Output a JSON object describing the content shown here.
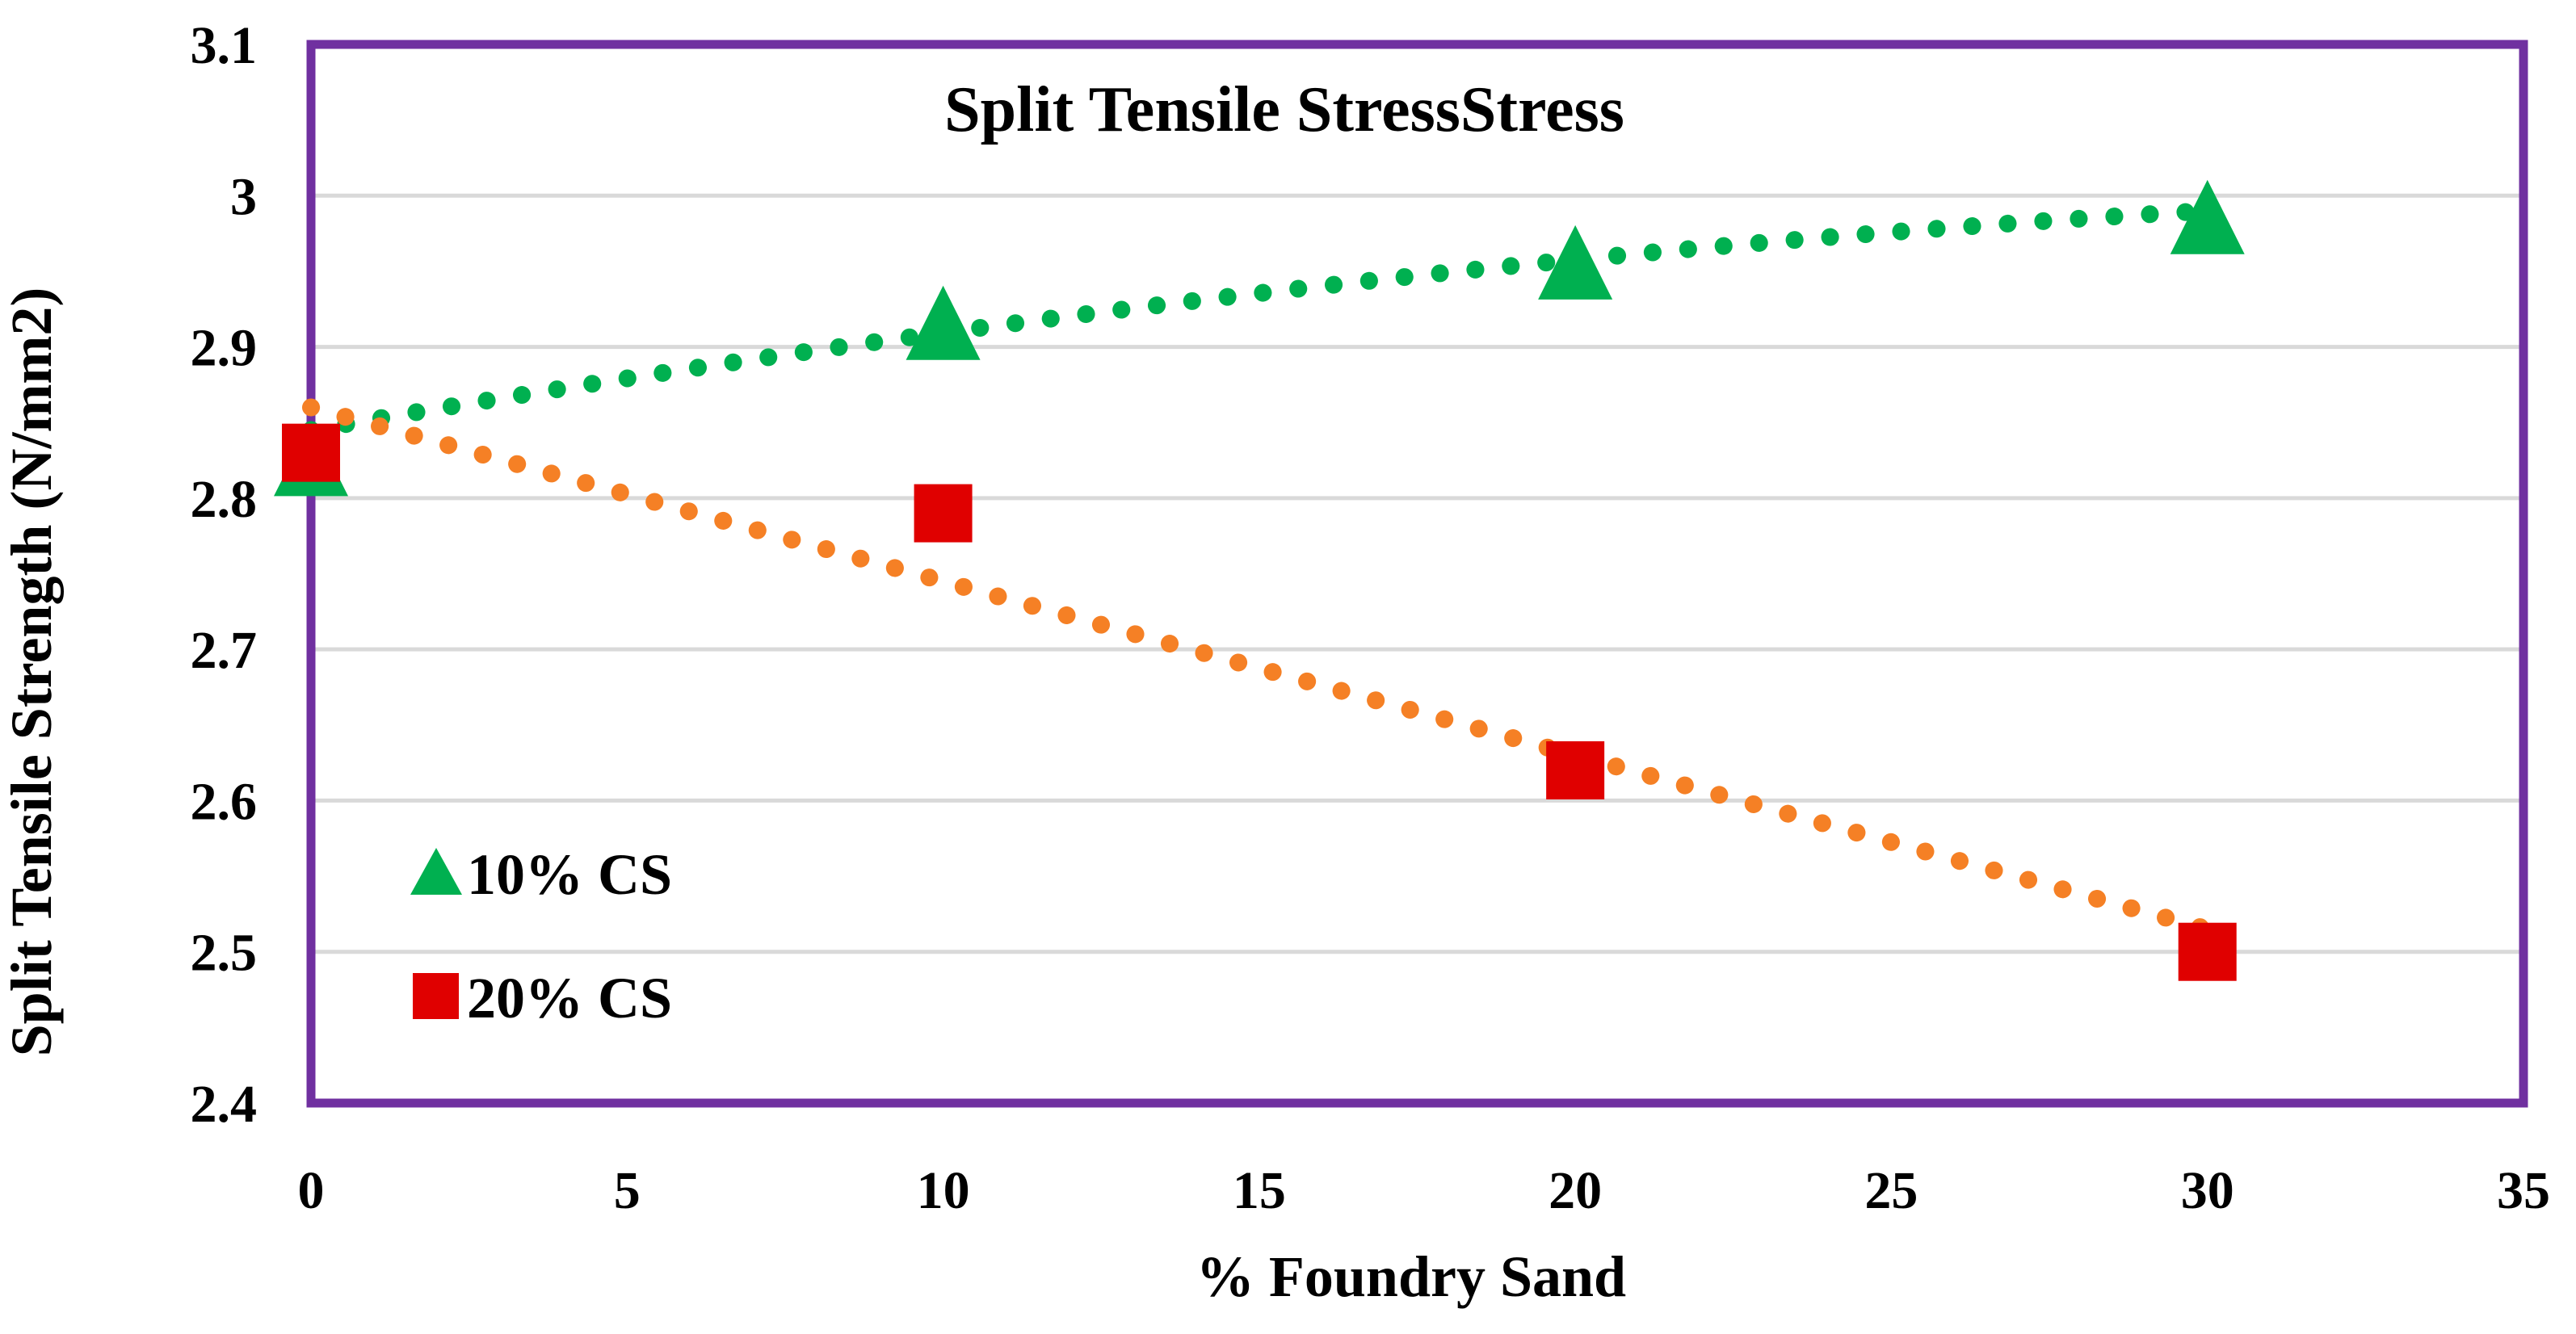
{
  "chart_data": {
    "type": "scatter",
    "title": "Split Tensile StressStress",
    "xlabel": "% Foundry Sand",
    "ylabel": "Split Tensile Strength (N/mm2)",
    "xlim": [
      0,
      35
    ],
    "ylim": [
      2.4,
      3.1
    ],
    "x_ticks": [
      0,
      5,
      10,
      15,
      20,
      25,
      30,
      35
    ],
    "y_ticks": [
      2.4,
      2.5,
      2.6,
      2.7,
      2.8,
      2.9,
      3,
      3.1
    ],
    "x_tick_labels": [
      "0",
      "5",
      "10",
      "15",
      "20",
      "25",
      "30",
      "35"
    ],
    "y_tick_labels": [
      "2.4",
      "2.5",
      "2.6",
      "2.7",
      "2.8",
      "2.9",
      "3",
      "3.1"
    ],
    "grid": true,
    "legend_position": "bottom-left",
    "series": [
      {
        "name": "10% CS",
        "marker": "triangle",
        "color": "#00B050",
        "x": [
          0,
          10,
          20,
          30
        ],
        "y": [
          2.82,
          2.91,
          2.95,
          2.98
        ],
        "trendline": {
          "type": "polynomial",
          "style": "dotted",
          "color": "#00B050",
          "y_at_0": 2.845,
          "y_at_30": 2.99
        }
      },
      {
        "name": "20% CS",
        "marker": "square",
        "color": "#E00000",
        "x": [
          0,
          10,
          20,
          30
        ],
        "y": [
          2.83,
          2.79,
          2.62,
          2.5
        ],
        "trendline": {
          "type": "linear",
          "style": "dotted",
          "color": "#F58025",
          "y_at_0": 2.86,
          "y_at_30": 2.515
        }
      }
    ]
  },
  "colors": {
    "plot_border": "#7030A0",
    "gridline": "#D9D9D9"
  }
}
